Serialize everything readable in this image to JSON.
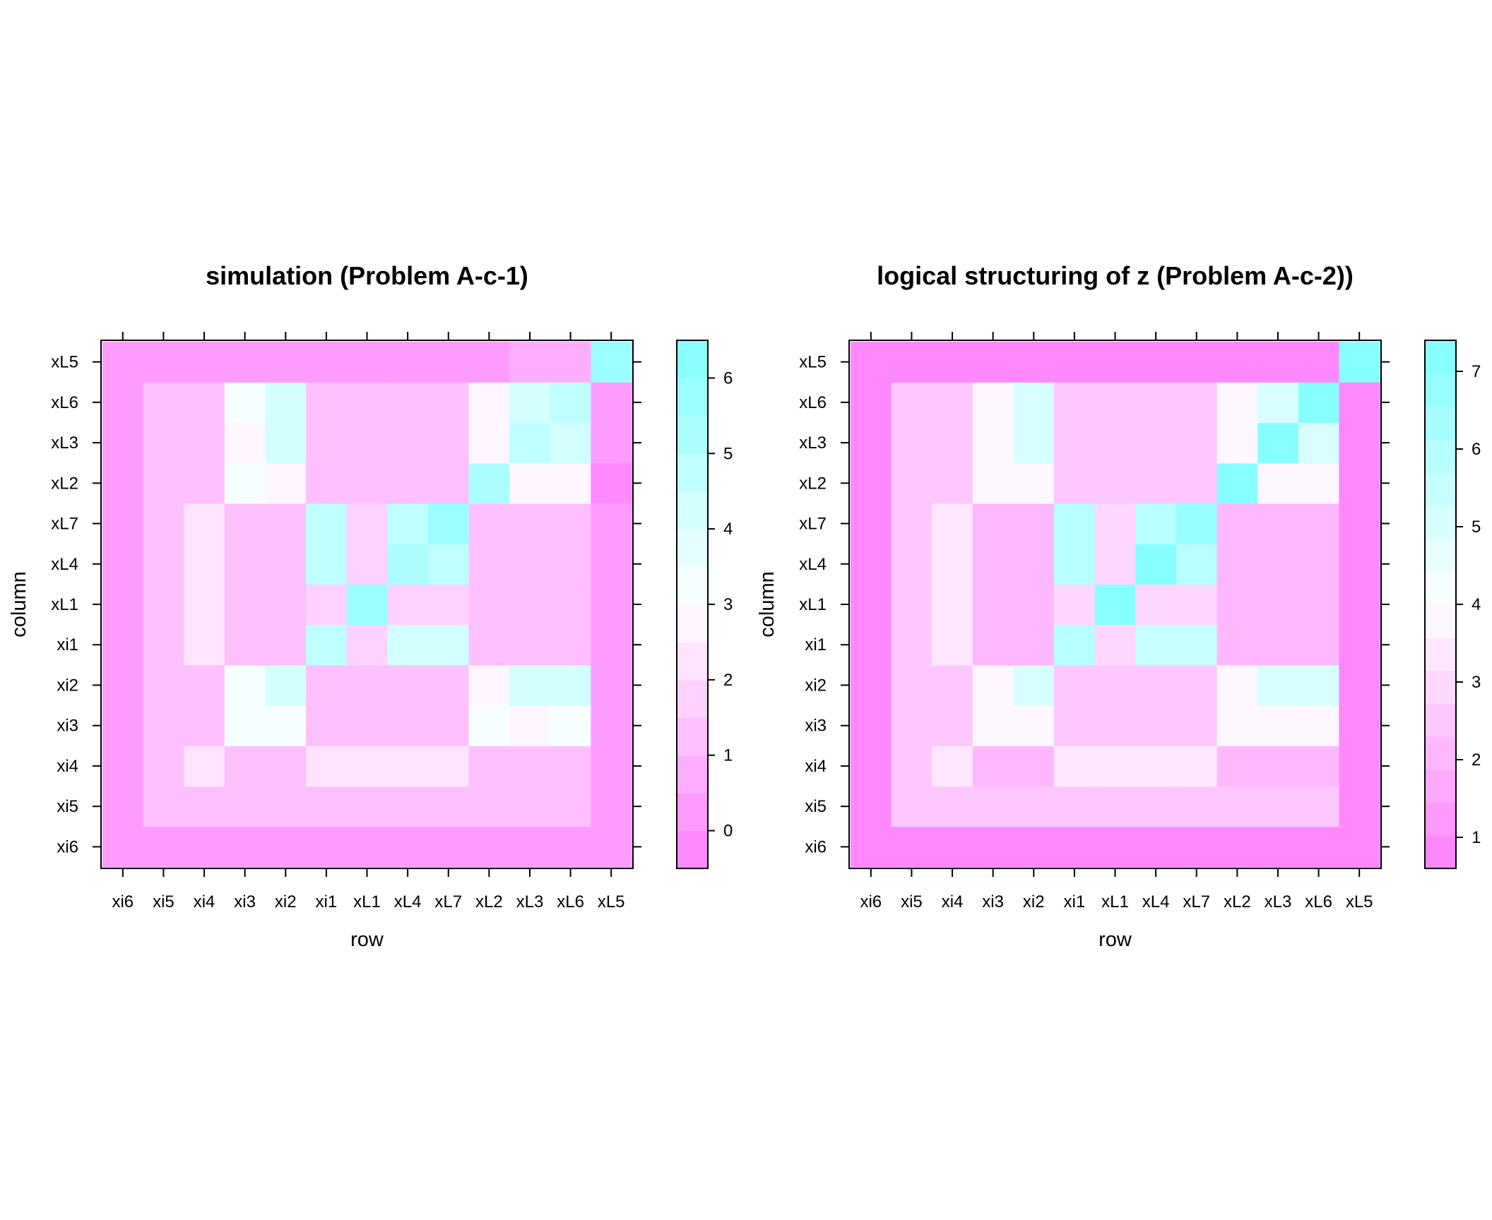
{
  "chart_data": [
    {
      "type": "heatmap",
      "title": "simulation (Problem A-c-1)",
      "xlabel": "row",
      "ylabel": "column",
      "x_categories": [
        "xi6",
        "xi5",
        "xi4",
        "xi3",
        "xi2",
        "xi1",
        "xL1",
        "xL4",
        "xL7",
        "xL2",
        "xL3",
        "xL6",
        "xL5"
      ],
      "y_categories": [
        "xi6",
        "xi5",
        "xi4",
        "xi3",
        "xi2",
        "xi1",
        "xL1",
        "xL4",
        "xL7",
        "xL2",
        "xL3",
        "xL6",
        "xL5"
      ],
      "values": [
        [
          0.3,
          0.3,
          0.3,
          0.3,
          0.3,
          0.3,
          0.3,
          0.3,
          0.3,
          0.3,
          0.3,
          0.3,
          0.3
        ],
        [
          0.3,
          1.3,
          1.3,
          1.3,
          1.3,
          1.3,
          1.3,
          1.3,
          1.3,
          1.3,
          1.3,
          1.3,
          0.3
        ],
        [
          0.3,
          1.3,
          2.1,
          1.1,
          1.1,
          2.1,
          2.1,
          2.1,
          2.1,
          1.1,
          1.1,
          1.1,
          0.3
        ],
        [
          0.3,
          1.3,
          1.3,
          3.3,
          3.3,
          1.3,
          1.3,
          1.3,
          1.3,
          3.3,
          2.6,
          3.3,
          0.3
        ],
        [
          0.3,
          1.3,
          1.3,
          3.3,
          4.3,
          1.3,
          1.3,
          1.3,
          1.3,
          2.7,
          4.3,
          4.3,
          0.3
        ],
        [
          0.3,
          1.3,
          2.1,
          1.1,
          1.1,
          4.5,
          1.9,
          4.3,
          4.3,
          1.1,
          1.1,
          1.1,
          0.3
        ],
        [
          0.3,
          1.3,
          2.1,
          1.1,
          1.1,
          1.9,
          5.7,
          1.9,
          1.9,
          1.1,
          1.1,
          1.1,
          0.3
        ],
        [
          0.3,
          1.3,
          2.1,
          1.1,
          1.1,
          4.5,
          1.9,
          5.3,
          4.5,
          1.1,
          1.1,
          1.1,
          0.3
        ],
        [
          0.3,
          1.3,
          2.1,
          1.1,
          1.1,
          4.5,
          1.9,
          4.5,
          5.7,
          1.1,
          1.1,
          1.1,
          0.3
        ],
        [
          0.3,
          1.3,
          1.3,
          3.3,
          2.7,
          1.3,
          1.3,
          1.3,
          1.3,
          5.3,
          2.7,
          2.7,
          -0.1
        ],
        [
          0.3,
          1.3,
          1.3,
          2.6,
          4.3,
          1.3,
          1.3,
          1.3,
          1.3,
          2.7,
          4.7,
          4.3,
          0.3
        ],
        [
          0.3,
          1.3,
          1.3,
          3.3,
          4.3,
          1.3,
          1.3,
          1.3,
          1.3,
          2.7,
          4.3,
          4.7,
          0.3
        ],
        [
          0.3,
          0.3,
          0.3,
          0.3,
          0.3,
          0.3,
          0.3,
          0.3,
          0.3,
          0.3,
          0.7,
          0.7,
          5.7
        ]
      ],
      "colorbar": {
        "range": [
          -0.5,
          6.5
        ],
        "ticks": [
          0,
          1,
          2,
          3,
          4,
          5,
          6
        ],
        "levels": 14
      },
      "colors": {
        "low": "#FF80FF",
        "mid": "#FFFFFF",
        "high": "#80FFFF"
      }
    },
    {
      "type": "heatmap",
      "title": "logical structuring of z (Problem A-c-2))",
      "xlabel": "row",
      "ylabel": "column",
      "x_categories": [
        "xi6",
        "xi5",
        "xi4",
        "xi3",
        "xi2",
        "xi1",
        "xL1",
        "xL4",
        "xL7",
        "xL2",
        "xL3",
        "xL6",
        "xL5"
      ],
      "y_categories": [
        "xi6",
        "xi5",
        "xi4",
        "xi3",
        "xi2",
        "xi1",
        "xL1",
        "xL4",
        "xL7",
        "xL2",
        "xL3",
        "xL6",
        "xL5"
      ],
      "values": [
        [
          0.9,
          0.9,
          0.9,
          0.9,
          0.9,
          0.9,
          0.9,
          0.9,
          0.9,
          0.9,
          0.9,
          0.9,
          0.9
        ],
        [
          0.9,
          2.4,
          2.4,
          2.4,
          2.4,
          2.4,
          2.4,
          2.4,
          2.4,
          2.4,
          2.4,
          2.4,
          0.9
        ],
        [
          0.9,
          2.4,
          3.2,
          2.1,
          2.1,
          3.2,
          3.2,
          3.2,
          3.2,
          2.1,
          2.1,
          2.1,
          0.9
        ],
        [
          0.9,
          2.4,
          2.4,
          3.8,
          3.8,
          2.4,
          2.4,
          2.4,
          2.4,
          3.8,
          3.8,
          3.8,
          0.9
        ],
        [
          0.9,
          2.4,
          2.4,
          3.8,
          5.2,
          2.4,
          2.4,
          2.4,
          2.4,
          3.8,
          5.2,
          5.2,
          0.9
        ],
        [
          0.9,
          2.4,
          3.2,
          2.1,
          2.1,
          5.7,
          2.9,
          5.5,
          5.5,
          2.1,
          2.1,
          2.1,
          0.9
        ],
        [
          0.9,
          2.4,
          3.2,
          2.1,
          2.1,
          2.9,
          7.2,
          2.9,
          2.9,
          2.1,
          2.1,
          2.1,
          0.9
        ],
        [
          0.9,
          2.4,
          3.2,
          2.1,
          2.1,
          5.7,
          2.9,
          7.2,
          5.7,
          2.1,
          2.1,
          2.1,
          0.9
        ],
        [
          0.9,
          2.4,
          3.2,
          2.1,
          2.1,
          5.7,
          2.9,
          5.7,
          6.8,
          2.1,
          2.1,
          2.1,
          0.9
        ],
        [
          0.9,
          2.4,
          2.4,
          3.8,
          3.8,
          2.4,
          2.4,
          2.4,
          2.4,
          7.2,
          3.8,
          3.8,
          0.9
        ],
        [
          0.9,
          2.4,
          2.4,
          3.8,
          5.2,
          2.4,
          2.4,
          2.4,
          2.4,
          3.8,
          7.2,
          5.2,
          0.9
        ],
        [
          0.9,
          2.4,
          2.4,
          3.8,
          5.2,
          2.4,
          2.4,
          2.4,
          2.4,
          3.8,
          5.2,
          7.2,
          0.9
        ],
        [
          0.9,
          0.9,
          0.9,
          0.9,
          0.9,
          0.9,
          0.9,
          0.9,
          0.9,
          0.9,
          0.9,
          0.9,
          7.2
        ]
      ],
      "colorbar": {
        "range": [
          0.6,
          7.4
        ],
        "ticks": [
          1,
          2,
          3,
          4,
          5,
          6,
          7
        ],
        "levels": 16
      },
      "colors": {
        "low": "#FF80FF",
        "mid": "#FFFFFF",
        "high": "#80FFFF"
      }
    }
  ]
}
